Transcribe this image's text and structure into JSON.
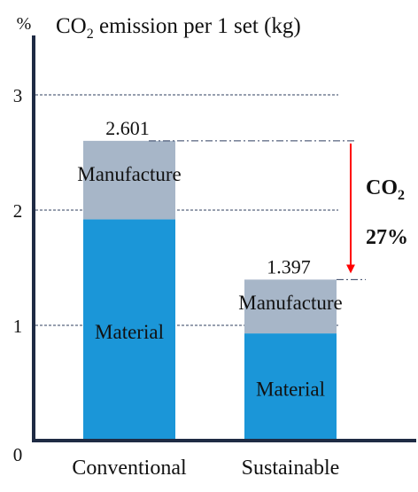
{
  "chart_data": {
    "type": "bar",
    "stacked": true,
    "title_prefix": "CO",
    "title_subscript": "2",
    "title_suffix": " emission per 1 set (kg)",
    "ylabel": "%",
    "xlabel": "",
    "ylim": [
      0,
      3.5
    ],
    "y_ticks": [
      0,
      1,
      2,
      3
    ],
    "grid": "dashed horizontal",
    "categories": [
      "Conventional",
      "Sustainable"
    ],
    "series": [
      {
        "name": "Material",
        "values": [
          1.92,
          0.93
        ],
        "color": "#1b96d8"
      },
      {
        "name": "Manufacture",
        "values": [
          0.681,
          0.467
        ],
        "color": "#a7b6c8"
      }
    ],
    "totals": [
      "2.601",
      "1.397"
    ],
    "annotation": {
      "label_prefix": "CO",
      "label_subscript": "2",
      "percent": "27%",
      "arrow_color": "#ff0000"
    }
  }
}
